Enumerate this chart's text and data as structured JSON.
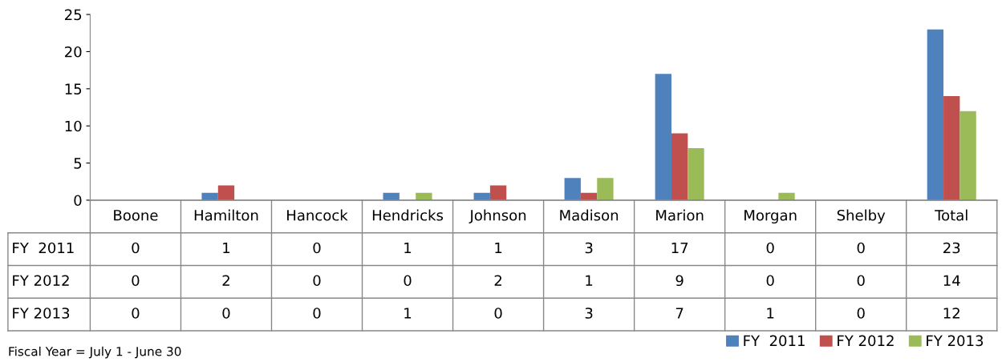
{
  "chart_data": {
    "type": "bar",
    "categories": [
      "Boone",
      "Hamilton",
      "Hancock",
      "Hendricks",
      "Johnson",
      "Madison",
      "Marion",
      "Morgan",
      "Shelby",
      "Total"
    ],
    "series": [
      {
        "name": "FY  2011",
        "color": "#4f81bd",
        "values": [
          0,
          1,
          0,
          1,
          1,
          3,
          17,
          0,
          0,
          23
        ]
      },
      {
        "name": "FY 2012",
        "color": "#c0504d",
        "values": [
          0,
          2,
          0,
          0,
          2,
          1,
          9,
          0,
          0,
          14
        ]
      },
      {
        "name": "FY 2013",
        "color": "#9bbb59",
        "values": [
          0,
          0,
          0,
          1,
          0,
          3,
          7,
          1,
          0,
          12
        ]
      }
    ],
    "ylim": [
      0,
      25
    ],
    "yticks": [
      0,
      5,
      10,
      15,
      20,
      25
    ],
    "grid": false,
    "legend": "bottom right",
    "data_labels": true,
    "annotations": [
      "Fiscal Year = July 1 - June 30"
    ]
  }
}
